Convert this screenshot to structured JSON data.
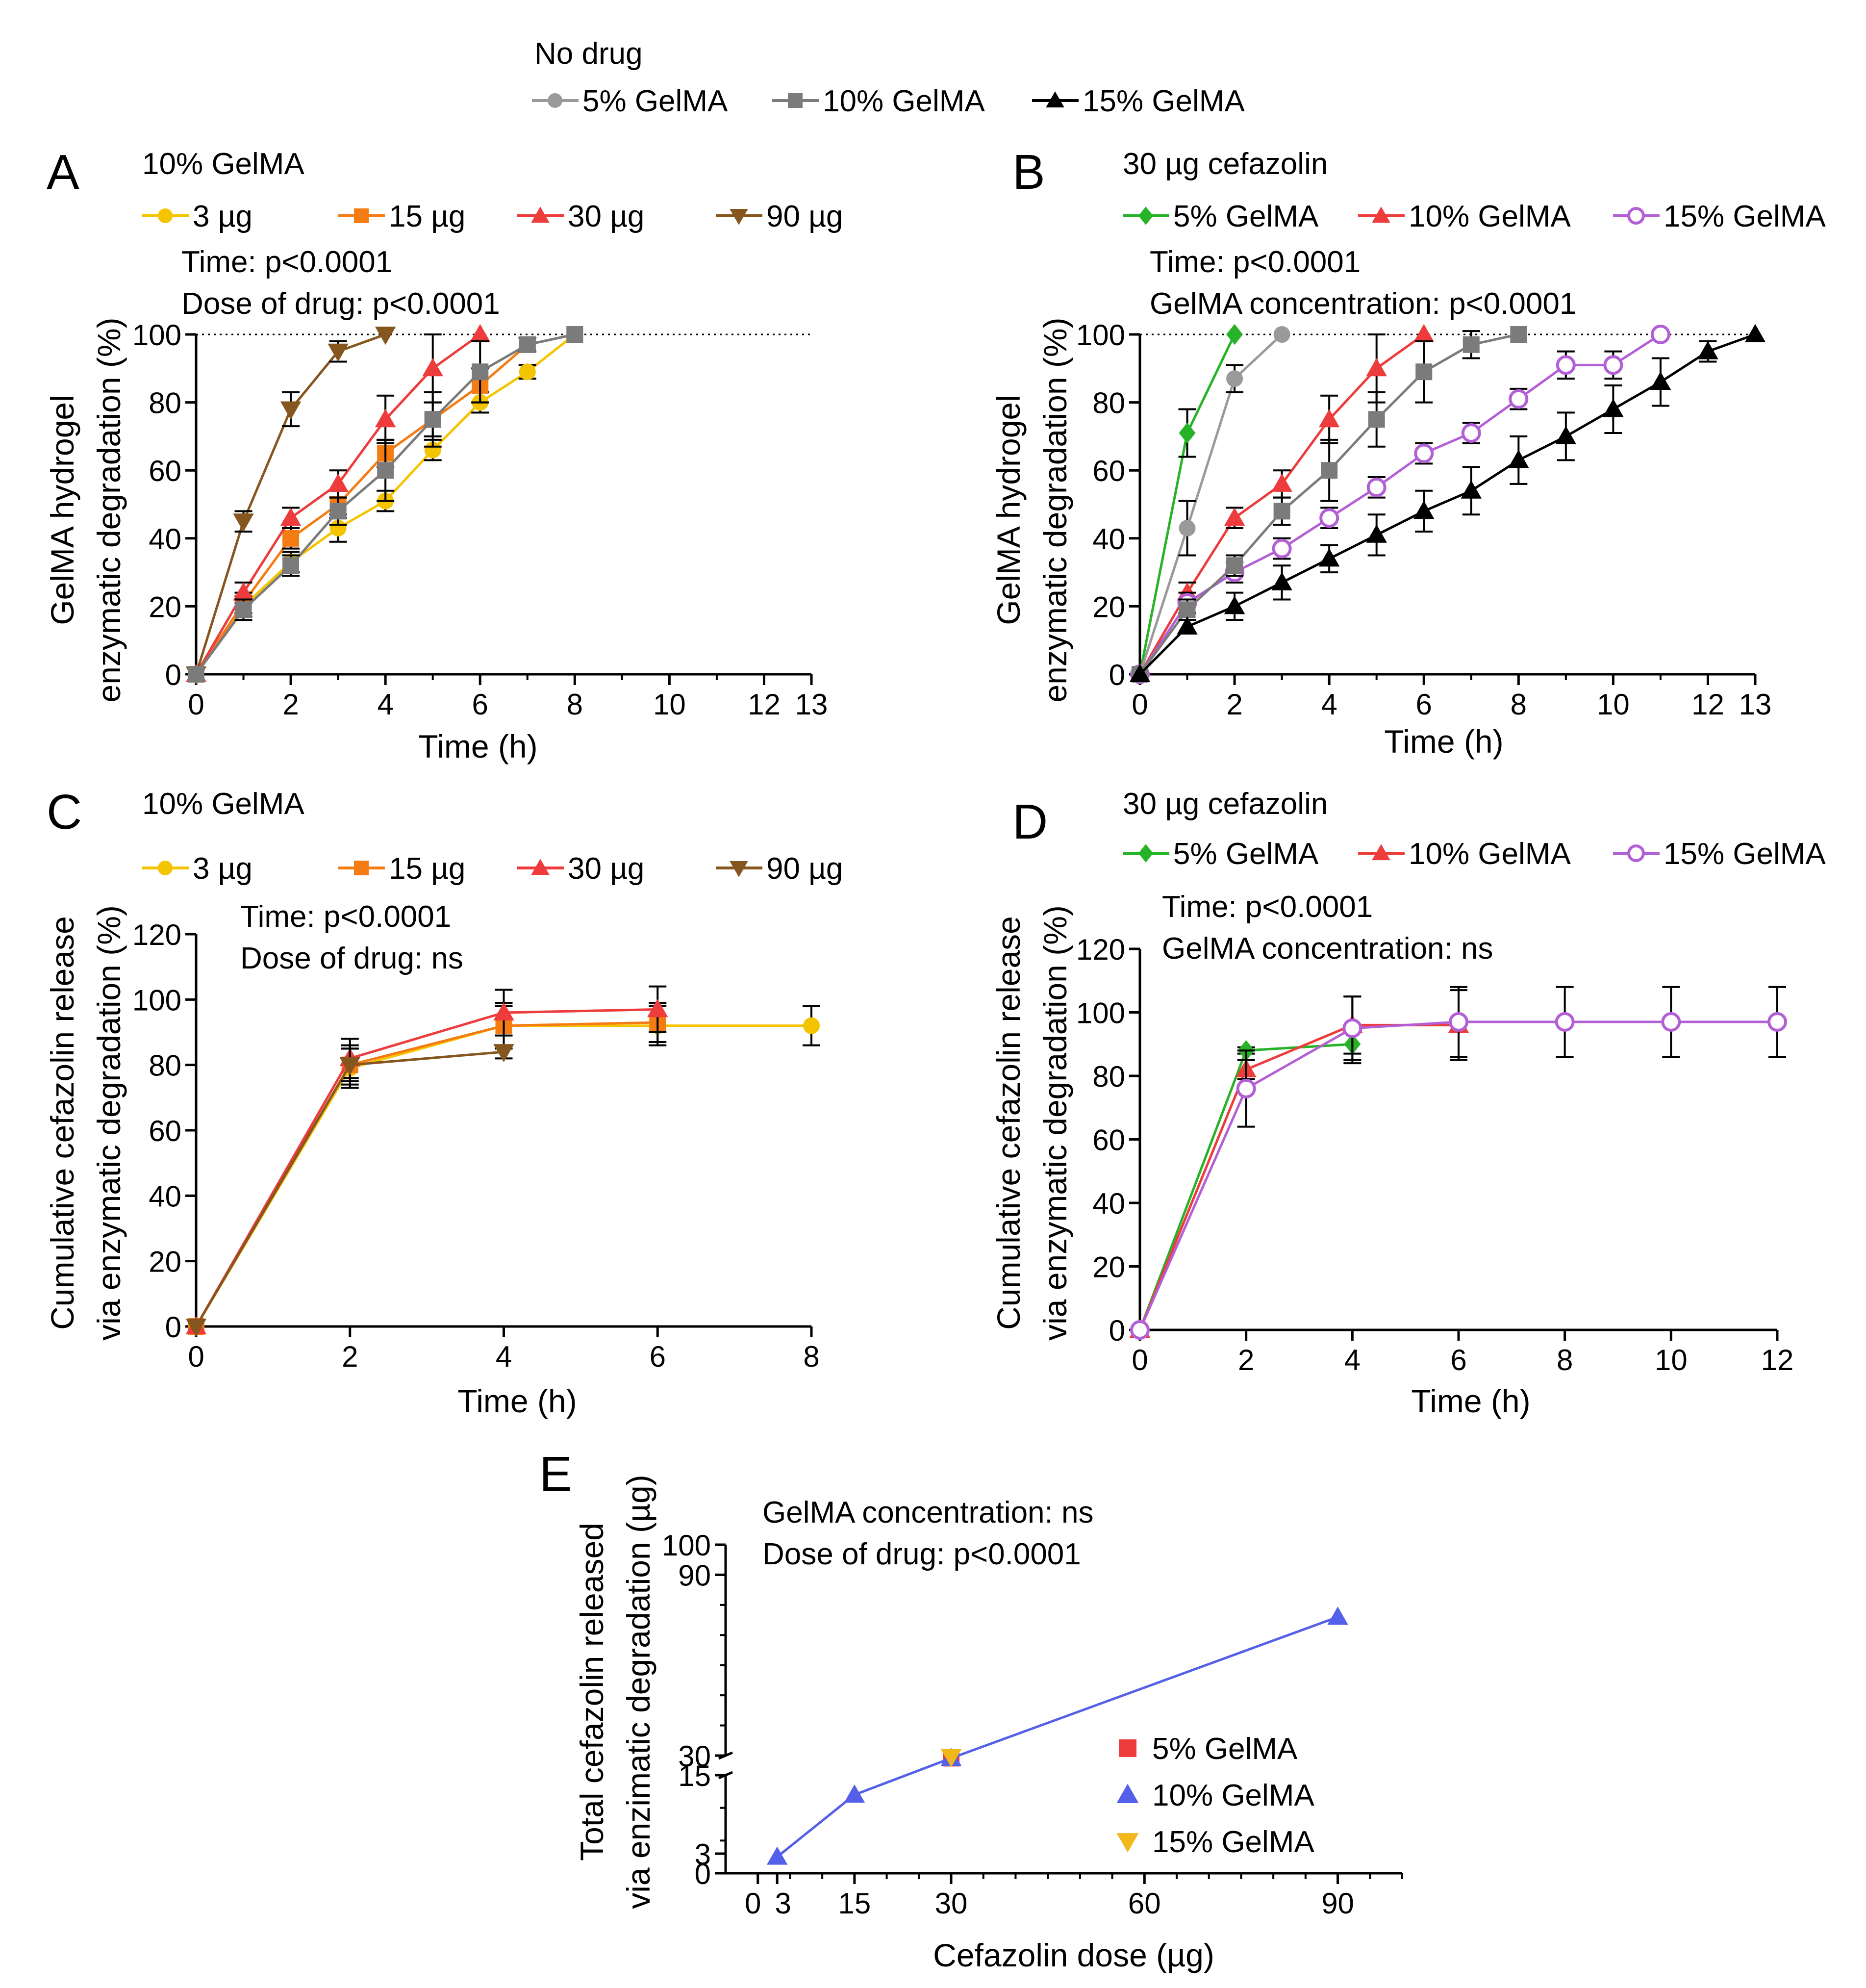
{
  "global_legend": {
    "title": "No drug",
    "entries": [
      {
        "label": "5% GelMA",
        "color": "#9a9a9a",
        "marker": "circle"
      },
      {
        "label": "10% GelMA",
        "color": "#7b7b7b",
        "marker": "square"
      },
      {
        "label": "15% GelMA",
        "color": "#000000",
        "marker": "triangle"
      }
    ]
  },
  "colors": {
    "dose3": "#f5c400",
    "dose15": "#f57c12",
    "dose30": "#ee3b3b",
    "dose90": "#86561f",
    "gel5": "#27b327",
    "gel10": "#ee3b3b",
    "gel15": "#b35fd6",
    "nodrug5": "#9a9a9a",
    "nodrug10": "#7b7b7b",
    "nodrug15": "#000000",
    "e5": "#ee3b3b",
    "e10": "#5560e8",
    "e15": "#f2b81b"
  },
  "chart_data": [
    {
      "panel": "A",
      "type": "line",
      "header": "10% GelMA",
      "stats": [
        "Time: p<0.0001",
        "Dose of drug: p<0.0001"
      ],
      "xlabel": "Time (h)",
      "ylabel": [
        "GelMA hydrogel",
        "enzymatic degradation (%)"
      ],
      "xlim": [
        0,
        13
      ],
      "ylim": [
        0,
        100
      ],
      "xticks": [
        0,
        2,
        4,
        6,
        8,
        10,
        12,
        13
      ],
      "yticks": [
        0,
        20,
        40,
        60,
        80,
        100
      ],
      "reference_line": 100,
      "series": [
        {
          "name": "3 µg",
          "color": "#f5c400",
          "marker": "circle",
          "legend": true,
          "x": [
            0,
            1,
            2,
            3,
            4,
            5,
            6,
            7,
            8
          ],
          "y": [
            0,
            20,
            33,
            43,
            51,
            66,
            80,
            89,
            100
          ],
          "err": [
            0,
            3,
            3,
            4,
            3,
            3,
            3,
            2,
            0
          ]
        },
        {
          "name": "15 µg",
          "color": "#f57c12",
          "marker": "square",
          "legend": true,
          "x": [
            0,
            1,
            2,
            3,
            4,
            5,
            6,
            7,
            8
          ],
          "y": [
            0,
            21,
            40,
            50,
            65,
            75,
            85,
            97,
            100
          ],
          "err": [
            0,
            3,
            3,
            4,
            4,
            5,
            5,
            2,
            0
          ]
        },
        {
          "name": "30 µg",
          "color": "#ee3b3b",
          "marker": "triangle",
          "legend": true,
          "x": [
            0,
            1,
            2,
            3,
            4,
            5,
            6
          ],
          "y": [
            0,
            24,
            46,
            56,
            75,
            90,
            100
          ],
          "err": [
            0,
            3,
            3,
            4,
            7,
            10,
            0
          ]
        },
        {
          "name": "90 µg",
          "color": "#86561f",
          "marker": "triangle-down",
          "legend": true,
          "x": [
            0,
            1,
            2,
            3,
            4
          ],
          "y": [
            0,
            45,
            78,
            95,
            100
          ],
          "err": [
            0,
            3,
            5,
            3,
            0
          ]
        },
        {
          "name": "No drug 10% GelMA",
          "color": "#7b7b7b",
          "marker": "square",
          "legend": false,
          "x": [
            0,
            1,
            2,
            3,
            4,
            5,
            6,
            7,
            8
          ],
          "y": [
            0,
            19,
            32,
            48,
            60,
            75,
            89,
            97,
            100
          ],
          "err": [
            0,
            3,
            3,
            4,
            9,
            8,
            9,
            2,
            0
          ]
        }
      ]
    },
    {
      "panel": "B",
      "type": "line",
      "header": "30 µg cefazolin",
      "stats": [
        "Time: p<0.0001",
        "GelMA concentration: p<0.0001"
      ],
      "xlabel": "Time (h)",
      "ylabel": [
        "GelMA hydrogel",
        "enzymatic degradation (%)"
      ],
      "xlim": [
        0,
        13
      ],
      "ylim": [
        0,
        100
      ],
      "xticks": [
        0,
        2,
        4,
        6,
        8,
        10,
        12,
        13
      ],
      "yticks": [
        0,
        20,
        40,
        60,
        80,
        100
      ],
      "reference_line": 100,
      "series": [
        {
          "name": "5% GelMA",
          "color": "#27b327",
          "marker": "diamond",
          "legend": true,
          "x": [
            0,
            1,
            2
          ],
          "y": [
            0,
            71,
            100
          ],
          "err": [
            0,
            7,
            0
          ]
        },
        {
          "name": "10% GelMA",
          "color": "#ee3b3b",
          "marker": "triangle",
          "legend": true,
          "x": [
            0,
            1,
            2,
            3,
            4,
            5,
            6
          ],
          "y": [
            0,
            24,
            46,
            56,
            75,
            90,
            100
          ],
          "err": [
            0,
            3,
            3,
            4,
            7,
            10,
            0
          ]
        },
        {
          "name": "15% GelMA",
          "color": "#b35fd6",
          "marker": "circle-open",
          "legend": true,
          "x": [
            0,
            1,
            2,
            3,
            4,
            5,
            6,
            7,
            8,
            9,
            10,
            11
          ],
          "y": [
            0,
            21,
            30,
            37,
            46,
            55,
            65,
            71,
            81,
            91,
            91,
            100
          ],
          "err": [
            0,
            3,
            3,
            3,
            3,
            3,
            3,
            3,
            3,
            4,
            4,
            0
          ]
        },
        {
          "name": "No drug 5% GelMA",
          "color": "#9a9a9a",
          "marker": "circle",
          "legend": false,
          "x": [
            0,
            1,
            2,
            3
          ],
          "y": [
            0,
            43,
            87,
            100
          ],
          "err": [
            0,
            8,
            4,
            0
          ]
        },
        {
          "name": "No drug 10% GelMA",
          "color": "#7b7b7b",
          "marker": "square",
          "legend": false,
          "x": [
            0,
            1,
            2,
            3,
            4,
            5,
            6,
            7,
            8
          ],
          "y": [
            0,
            19,
            32,
            48,
            60,
            75,
            89,
            97,
            100
          ],
          "err": [
            0,
            3,
            3,
            4,
            9,
            8,
            9,
            4,
            0
          ]
        },
        {
          "name": "No drug 15% GelMA",
          "color": "#000000",
          "marker": "triangle",
          "legend": false,
          "x": [
            0,
            1,
            2,
            3,
            4,
            5,
            6,
            7,
            8,
            9,
            10,
            11,
            12,
            13
          ],
          "y": [
            0,
            14,
            20,
            27,
            34,
            41,
            48,
            54,
            63,
            70,
            78,
            86,
            95,
            100
          ],
          "err": [
            0,
            2,
            4,
            5,
            4,
            6,
            6,
            7,
            7,
            7,
            7,
            7,
            3,
            0
          ]
        }
      ]
    },
    {
      "panel": "C",
      "type": "line",
      "header": "10% GelMA",
      "stats": [
        "Time: p<0.0001",
        "Dose of drug: ns"
      ],
      "xlabel": "Time (h)",
      "ylabel": [
        "Cumulative cefazolin release",
        "via enzymatic degradation (%)"
      ],
      "xlim": [
        0,
        8
      ],
      "ylim": [
        0,
        120
      ],
      "xticks": [
        0,
        2,
        4,
        6,
        8
      ],
      "yticks": [
        0,
        20,
        40,
        60,
        80,
        100,
        120
      ],
      "series": [
        {
          "name": "3 µg",
          "color": "#f5c400",
          "marker": "circle",
          "legend": true,
          "x": [
            0,
            2,
            4,
            6,
            8
          ],
          "y": [
            0,
            79,
            92,
            92,
            92
          ],
          "err": [
            0,
            6,
            7,
            6,
            6
          ]
        },
        {
          "name": "15 µg",
          "color": "#f57c12",
          "marker": "square",
          "legend": true,
          "x": [
            0,
            2,
            4,
            6
          ],
          "y": [
            0,
            80,
            92,
            93
          ],
          "err": [
            0,
            6,
            6,
            6
          ]
        },
        {
          "name": "30 µg",
          "color": "#ee3b3b",
          "marker": "triangle",
          "legend": true,
          "x": [
            0,
            2,
            4,
            6
          ],
          "y": [
            0,
            82,
            96,
            97
          ],
          "err": [
            0,
            6,
            7,
            7
          ]
        },
        {
          "name": "90 µg",
          "color": "#86561f",
          "marker": "triangle-down",
          "legend": true,
          "x": [
            0,
            2,
            4
          ],
          "y": [
            0,
            80,
            84
          ],
          "err": [
            0,
            5,
            2
          ]
        }
      ]
    },
    {
      "panel": "D",
      "type": "line",
      "header": "30 µg cefazolin",
      "stats": [
        "Time: p<0.0001",
        "GelMA concentration: ns"
      ],
      "xlabel": "Time (h)",
      "ylabel": [
        "Cumulative cefazolin release",
        "via enzymatic degradation (%)"
      ],
      "xlim": [
        0,
        12
      ],
      "ylim": [
        0,
        120
      ],
      "xticks": [
        0,
        2,
        4,
        6,
        8,
        10,
        12
      ],
      "yticks": [
        0,
        20,
        40,
        60,
        80,
        100,
        120
      ],
      "series": [
        {
          "name": "5% GelMA",
          "color": "#27b327",
          "marker": "diamond",
          "legend": true,
          "x": [
            0,
            2,
            4
          ],
          "y": [
            0,
            88,
            90
          ],
          "err": [
            0,
            1,
            6
          ]
        },
        {
          "name": "10% GelMA",
          "color": "#ee3b3b",
          "marker": "triangle",
          "legend": true,
          "x": [
            0,
            2,
            4,
            6
          ],
          "y": [
            0,
            82,
            96,
            96
          ],
          "err": [
            0,
            3,
            9,
            11
          ]
        },
        {
          "name": "15% GelMA",
          "color": "#b35fd6",
          "marker": "circle-open",
          "legend": true,
          "x": [
            0,
            2,
            4,
            6,
            8,
            10,
            12
          ],
          "y": [
            0,
            76,
            95,
            97,
            97,
            97,
            97
          ],
          "err": [
            0,
            12,
            10,
            11,
            11,
            11,
            11
          ]
        }
      ]
    },
    {
      "panel": "E",
      "type": "scatter",
      "stats": [
        "GelMA concentration: ns",
        "Dose of drug: p<0.0001"
      ],
      "xlabel": "Cefazolin dose (µg)",
      "ylabel": [
        "Total cefazolin released",
        "via enzimatic degradation (µg)"
      ],
      "xlim": [
        -5,
        100
      ],
      "xticks": [
        0,
        3,
        15,
        30,
        60,
        90
      ],
      "xtick_labels": [
        "0",
        "3",
        "15",
        "30",
        "60",
        "90"
      ],
      "y_axis": "broken",
      "ylim_lower": [
        0,
        15
      ],
      "ylim_upper": [
        30,
        100
      ],
      "yticks": [
        0,
        3,
        15,
        30,
        90,
        100
      ],
      "legend_position": "right",
      "series": [
        {
          "name": "5% GelMA",
          "color": "#ee3b3b",
          "marker": "square",
          "x": [
            30
          ],
          "y": [
            28
          ]
        },
        {
          "name": "10% GelMA",
          "color": "#5560e8",
          "marker": "triangle",
          "x": [
            3,
            15,
            30,
            90
          ],
          "y": [
            2.5,
            12,
            28,
            76
          ]
        },
        {
          "name": "15% GelMA",
          "color": "#f2b81b",
          "marker": "triangle-down",
          "x": [
            30
          ],
          "y": [
            29
          ]
        }
      ]
    }
  ]
}
